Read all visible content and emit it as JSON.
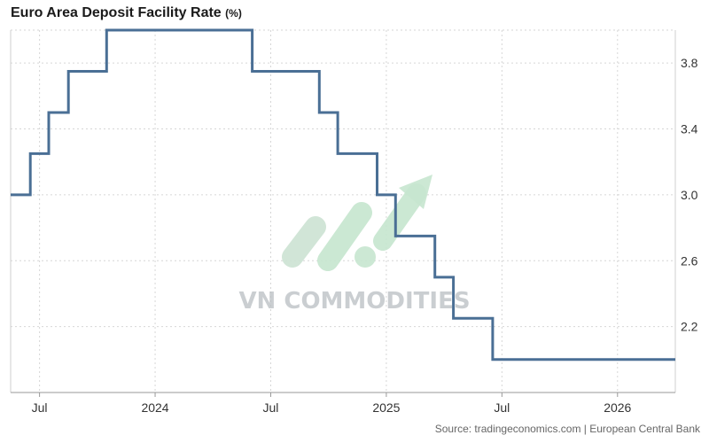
{
  "title": "Euro Area Deposit Facility Rate",
  "unit": "(%)",
  "source": "Source: tradingeconomics.com | European Central Bank",
  "watermark": {
    "text": "VN COMMODITIES"
  },
  "chart_data": {
    "type": "line",
    "step": true,
    "title": "Euro Area Deposit Facility Rate (%)",
    "xlabel": "",
    "ylabel": "",
    "ylim": [
      1.8,
      4.0
    ],
    "yticks": [
      2.2,
      2.6,
      3.0,
      3.4,
      3.8
    ],
    "xlim": [
      2023.375,
      2026.25
    ],
    "xticks": [
      {
        "label": "Jul",
        "t": 2023.5
      },
      {
        "label": "2024",
        "t": 2024.0
      },
      {
        "label": "Jul",
        "t": 2024.5
      },
      {
        "label": "2025",
        "t": 2025.0
      },
      {
        "label": "Jul",
        "t": 2025.5
      },
      {
        "label": "2026",
        "t": 2026.0
      }
    ],
    "series": [
      {
        "name": "Deposit Facility Rate",
        "color": "#4a6f95",
        "points": [
          {
            "t": 2023.375,
            "v": 3.0
          },
          {
            "t": 2023.46,
            "v": 3.25
          },
          {
            "t": 2023.54,
            "v": 3.5
          },
          {
            "t": 2023.625,
            "v": 3.75
          },
          {
            "t": 2023.79,
            "v": 4.0
          },
          {
            "t": 2024.42,
            "v": 3.75
          },
          {
            "t": 2024.71,
            "v": 3.5
          },
          {
            "t": 2024.79,
            "v": 3.25
          },
          {
            "t": 2024.96,
            "v": 3.0
          },
          {
            "t": 2025.04,
            "v": 2.75
          },
          {
            "t": 2025.21,
            "v": 2.5
          },
          {
            "t": 2025.29,
            "v": 2.25
          },
          {
            "t": 2025.46,
            "v": 2.0
          },
          {
            "t": 2026.25,
            "v": 2.0
          }
        ]
      }
    ]
  }
}
